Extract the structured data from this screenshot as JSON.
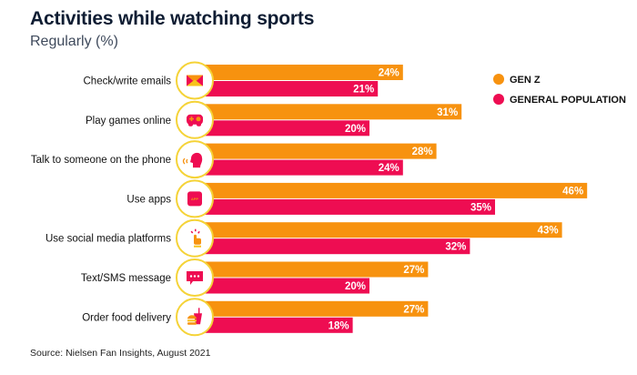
{
  "chart_data": {
    "type": "bar",
    "orientation": "horizontal",
    "title": "Activities while watching sports",
    "subtitle": "Regularly (%)",
    "xlabel": "",
    "ylabel": "",
    "xlim": [
      0,
      50
    ],
    "grid": false,
    "legend_position": "top-right",
    "categories": [
      "Check/write emails",
      "Play games online",
      "Talk to someone on the phone",
      "Use apps",
      "Use social media platforms",
      "Text/SMS message",
      "Order food delivery"
    ],
    "category_icons": [
      "envelope-icon",
      "gamepad-icon",
      "speaking-head-icon",
      "app-icon",
      "tap-finger-icon",
      "chat-bubble-icon",
      "food-drink-icon"
    ],
    "series": [
      {
        "name": "GEN Z",
        "color": "#f7920f",
        "values": [
          24,
          31,
          28,
          46,
          43,
          27,
          27
        ],
        "labels": [
          "24%",
          "31%",
          "28%",
          "46%",
          "43%",
          "27%",
          "27%"
        ]
      },
      {
        "name": "GENERAL POPULATION",
        "color": "#ee0d52",
        "values": [
          21,
          20,
          24,
          35,
          32,
          20,
          18
        ],
        "labels": [
          "21%",
          "20%",
          "24%",
          "35%",
          "32%",
          "20%",
          "18%"
        ]
      }
    ],
    "source": "Source: Nielsen Fan Insights, August 2021"
  },
  "colors": {
    "icon_ring": "#f5d338",
    "title": "#0f1d33"
  }
}
